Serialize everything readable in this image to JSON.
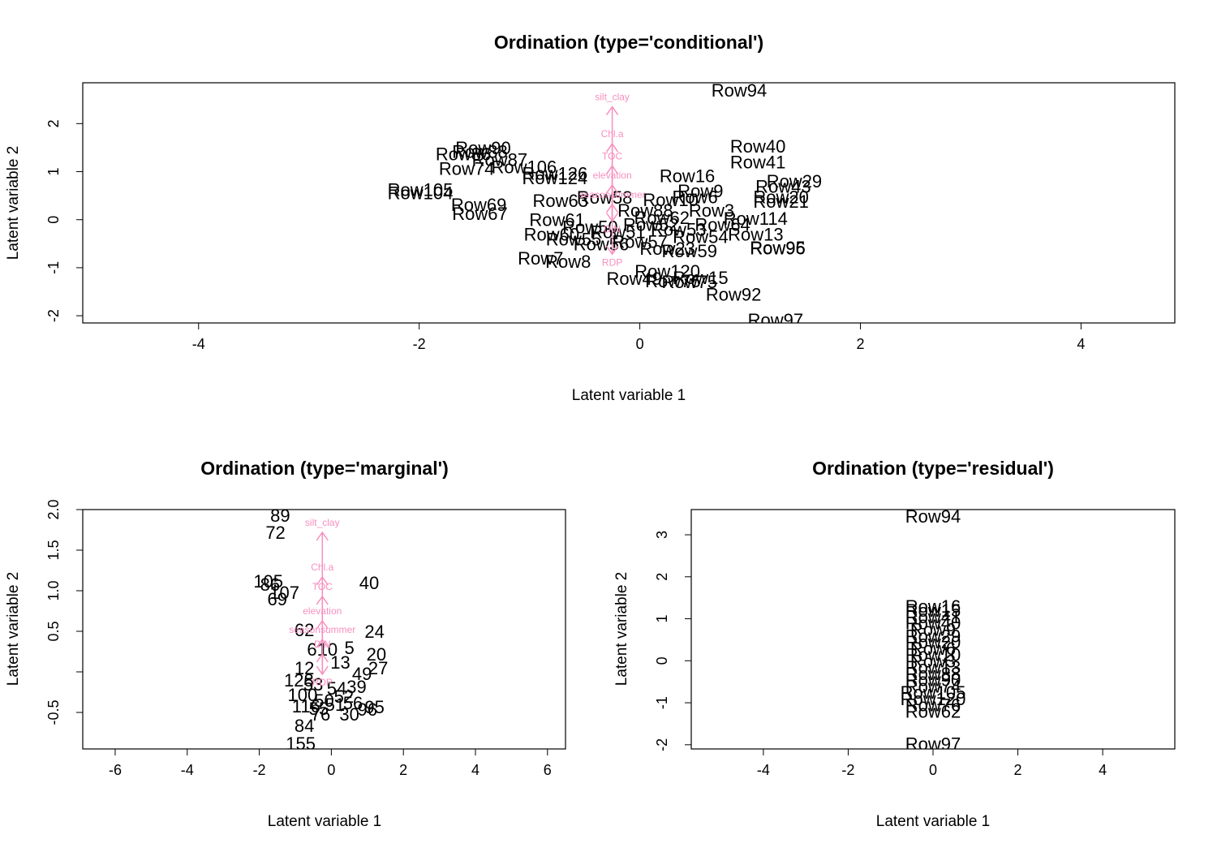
{
  "panels": [
    {
      "title": "Ordination (type='conditional')",
      "xlabel": "Latent variable 1",
      "ylabel": "Latent variable 2"
    },
    {
      "title": "Ordination (type='marginal')",
      "xlabel": "Latent variable 1",
      "ylabel": "Latent variable 2"
    },
    {
      "title": "Ordination (type='residual')",
      "xlabel": "Latent variable 1",
      "ylabel": "Latent variable 2"
    }
  ],
  "colors": {
    "arrow": "#f78fbf",
    "points": "#000000"
  },
  "chart_data": [
    {
      "type": "scatter",
      "title": "Ordination (type='conditional')",
      "xlabel": "Latent variable 1",
      "ylabel": "Latent variable 2",
      "xlim": [
        -5.05,
        4.85
      ],
      "ylim": [
        -2.15,
        2.85
      ],
      "xticks": [
        -4,
        -2,
        0,
        2,
        4
      ],
      "yticks": [
        -2,
        -1,
        0,
        1,
        2
      ],
      "points": [
        {
          "label": "Row94",
          "x": 0.9,
          "y": 2.7
        },
        {
          "label": "Row40",
          "x": 1.07,
          "y": 1.53
        },
        {
          "label": "Row41",
          "x": 1.07,
          "y": 1.2
        },
        {
          "label": "Row90",
          "x": -1.42,
          "y": 1.5
        },
        {
          "label": "Row88",
          "x": -1.45,
          "y": 1.42
        },
        {
          "label": "Row86",
          "x": -1.6,
          "y": 1.37
        },
        {
          "label": "Row87",
          "x": -1.27,
          "y": 1.25
        },
        {
          "label": "Row106",
          "x": -1.05,
          "y": 1.1
        },
        {
          "label": "Row74",
          "x": -1.57,
          "y": 1.07
        },
        {
          "label": "Row126",
          "x": -0.77,
          "y": 0.97
        },
        {
          "label": "Row124",
          "x": -0.77,
          "y": 0.87
        },
        {
          "label": "Row16",
          "x": 0.43,
          "y": 0.92
        },
        {
          "label": "Row29",
          "x": 1.4,
          "y": 0.81
        },
        {
          "label": "Row43",
          "x": 1.3,
          "y": 0.7
        },
        {
          "label": "Row20",
          "x": 1.28,
          "y": 0.48
        },
        {
          "label": "Row21",
          "x": 1.28,
          "y": 0.38
        },
        {
          "label": "Row105",
          "x": -1.99,
          "y": 0.63
        },
        {
          "label": "Row104",
          "x": -1.99,
          "y": 0.56
        },
        {
          "label": "Row69",
          "x": -1.46,
          "y": 0.32
        },
        {
          "label": "Row67",
          "x": -1.45,
          "y": 0.13
        },
        {
          "label": "Row58",
          "x": -0.32,
          "y": 0.47
        },
        {
          "label": "Row63",
          "x": -0.72,
          "y": 0.4
        },
        {
          "label": "Row9",
          "x": 0.55,
          "y": 0.6
        },
        {
          "label": "Row10",
          "x": 0.28,
          "y": 0.42
        },
        {
          "label": "Row6",
          "x": 0.5,
          "y": 0.48
        },
        {
          "label": "Row88b",
          "x": 0.05,
          "y": 0.2
        },
        {
          "label": "Row3",
          "x": 0.65,
          "y": 0.2
        },
        {
          "label": "Row114",
          "x": 1.05,
          "y": 0.03
        },
        {
          "label": "Row13",
          "x": 1.05,
          "y": -0.3
        },
        {
          "label": "Row95",
          "x": 1.25,
          "y": -0.58
        },
        {
          "label": "Row96",
          "x": 1.25,
          "y": -0.59
        },
        {
          "label": "Row23",
          "x": 0.25,
          "y": -0.6
        },
        {
          "label": "Row7",
          "x": -0.9,
          "y": -0.8
        },
        {
          "label": "Row8",
          "x": -0.65,
          "y": -0.87
        },
        {
          "label": "Row120",
          "x": 0.25,
          "y": -1.07
        },
        {
          "label": "Row15",
          "x": 0.55,
          "y": -1.2
        },
        {
          "label": "Row76",
          "x": 0.3,
          "y": -1.27
        },
        {
          "label": "Row75",
          "x": 0.45,
          "y": -1.29
        },
        {
          "label": "Row49",
          "x": -0.05,
          "y": -1.22
        },
        {
          "label": "Row92",
          "x": 0.85,
          "y": -1.55
        },
        {
          "label": "Row97",
          "x": 1.23,
          "y": -2.08
        },
        {
          "label": "Row50",
          "x": -0.45,
          "y": -0.15
        },
        {
          "label": "Row51",
          "x": -0.2,
          "y": -0.25
        },
        {
          "label": "Row52",
          "x": 0.1,
          "y": -0.1
        },
        {
          "label": "Row53",
          "x": 0.35,
          "y": -0.2
        },
        {
          "label": "Row54",
          "x": 0.55,
          "y": -0.35
        },
        {
          "label": "Row55",
          "x": -0.6,
          "y": -0.4
        },
        {
          "label": "Row56",
          "x": -0.35,
          "y": -0.5
        },
        {
          "label": "Row57",
          "x": 0.0,
          "y": -0.45
        },
        {
          "label": "Row59",
          "x": 0.45,
          "y": -0.65
        },
        {
          "label": "Row60",
          "x": -0.8,
          "y": -0.3
        },
        {
          "label": "Row61",
          "x": -0.75,
          "y": 0.0
        },
        {
          "label": "Row62",
          "x": 0.2,
          "y": 0.05
        },
        {
          "label": "Row64",
          "x": 0.75,
          "y": -0.1
        }
      ],
      "vectors": [
        {
          "name": "silt_clay",
          "x": -0.25,
          "y": 2.35
        },
        {
          "name": "Chl.a",
          "x": -0.25,
          "y": 1.58
        },
        {
          "name": "TOC",
          "x": -0.25,
          "y": 1.12
        },
        {
          "name": "elevation",
          "x": -0.25,
          "y": 0.72
        },
        {
          "name": "seasonsummer",
          "x": -0.25,
          "y": 0.32
        },
        {
          "name": "DIN",
          "x": -0.25,
          "y": -0.03
        },
        {
          "name": "RDP",
          "x": -0.25,
          "y": -0.72
        }
      ]
    },
    {
      "type": "scatter",
      "title": "Ordination (type='marginal')",
      "xlabel": "Latent variable 1",
      "ylabel": "Latent variable 2",
      "xlim": [
        -6.9,
        6.5
      ],
      "ylim": [
        -0.95,
        2.0
      ],
      "xticks": [
        -6,
        -4,
        -2,
        0,
        2,
        4,
        6
      ],
      "yticks": [
        -0.5,
        0,
        0.5,
        1.0,
        1.5,
        2.0
      ],
      "ytick_labels": [
        "-0.5",
        "",
        "0.5",
        "1.0",
        "1.5",
        "2.0"
      ],
      "points": [
        {
          "label": "89",
          "x": -1.42,
          "y": 1.93
        },
        {
          "label": "72",
          "x": -1.55,
          "y": 1.72
        },
        {
          "label": "105",
          "x": -1.75,
          "y": 1.12
        },
        {
          "label": "86",
          "x": -1.7,
          "y": 1.08
        },
        {
          "label": "107",
          "x": -1.3,
          "y": 0.98
        },
        {
          "label": "69",
          "x": -1.5,
          "y": 0.9
        },
        {
          "label": "40",
          "x": 1.05,
          "y": 1.1
        },
        {
          "label": "62",
          "x": -0.75,
          "y": 0.52
        },
        {
          "label": "24",
          "x": 1.2,
          "y": 0.5
        },
        {
          "label": "61",
          "x": -0.4,
          "y": 0.28
        },
        {
          "label": "10",
          "x": -0.1,
          "y": 0.28
        },
        {
          "label": "5",
          "x": 0.5,
          "y": 0.3
        },
        {
          "label": "20",
          "x": 1.25,
          "y": 0.22
        },
        {
          "label": "13",
          "x": 0.25,
          "y": 0.12
        },
        {
          "label": "27",
          "x": 1.3,
          "y": 0.05
        },
        {
          "label": "12",
          "x": -0.75,
          "y": 0.05
        },
        {
          "label": "128",
          "x": -0.9,
          "y": -0.1
        },
        {
          "label": "49",
          "x": 0.85,
          "y": -0.02
        },
        {
          "label": "39",
          "x": 0.7,
          "y": -0.18
        },
        {
          "label": "100",
          "x": -0.8,
          "y": -0.28
        },
        {
          "label": "116",
          "x": -0.7,
          "y": -0.42
        },
        {
          "label": "95",
          "x": 1.2,
          "y": -0.43
        },
        {
          "label": "96",
          "x": 1.0,
          "y": -0.46
        },
        {
          "label": "30",
          "x": 0.5,
          "y": -0.52
        },
        {
          "label": "76",
          "x": -0.3,
          "y": -0.52
        },
        {
          "label": "84",
          "x": -0.75,
          "y": -0.66
        },
        {
          "label": "155",
          "x": -0.85,
          "y": -0.88
        },
        {
          "label": "50",
          "x": -0.2,
          "y": -0.35
        },
        {
          "label": "51",
          "x": 0.1,
          "y": -0.4
        },
        {
          "label": "52",
          "x": 0.35,
          "y": -0.3
        },
        {
          "label": "53",
          "x": -0.5,
          "y": -0.15
        },
        {
          "label": "54",
          "x": 0.15,
          "y": -0.2
        },
        {
          "label": "55",
          "x": -0.35,
          "y": -0.45
        },
        {
          "label": "56",
          "x": 0.6,
          "y": -0.38
        }
      ],
      "vectors": [
        {
          "name": "silt_clay",
          "x": -0.25,
          "y": 1.72
        },
        {
          "name": "Chl.a",
          "x": -0.25,
          "y": 1.17
        },
        {
          "name": "TOC",
          "x": -0.25,
          "y": 0.93
        },
        {
          "name": "elevation",
          "x": -0.25,
          "y": 0.63
        },
        {
          "name": "seasonsummer",
          "x": -0.25,
          "y": 0.4
        },
        {
          "name": "DIN",
          "x": -0.25,
          "y": 0.22
        },
        {
          "name": "RDP",
          "x": -0.25,
          "y": -0.03
        }
      ]
    },
    {
      "type": "scatter",
      "title": "Ordination (type='residual')",
      "xlabel": "Latent variable 1",
      "ylabel": "Latent variable 2",
      "xlim": [
        -5.7,
        5.7
      ],
      "ylim": [
        -2.1,
        3.6
      ],
      "xticks": [
        -4,
        -2,
        0,
        2,
        4
      ],
      "yticks": [
        -2,
        -1,
        0,
        1,
        2,
        3
      ],
      "points": [
        {
          "label": "Row94",
          "x": 0.0,
          "y": 3.45
        },
        {
          "label": "Row16",
          "x": 0.0,
          "y": 1.3
        },
        {
          "label": "Row15",
          "x": 0.0,
          "y": 1.2
        },
        {
          "label": "Row41",
          "x": 0.0,
          "y": 1.05
        },
        {
          "label": "Row40",
          "x": 0.0,
          "y": 0.9
        },
        {
          "label": "Row9",
          "x": 0.0,
          "y": 0.75
        },
        {
          "label": "Row29",
          "x": 0.0,
          "y": 0.6
        },
        {
          "label": "Row20",
          "x": 0.0,
          "y": 0.45
        },
        {
          "label": "Row6",
          "x": 0.0,
          "y": 0.3
        },
        {
          "label": "Row10",
          "x": 0.0,
          "y": 0.15
        },
        {
          "label": "Row3",
          "x": 0.0,
          "y": 0.0
        },
        {
          "label": "Row13",
          "x": 0.0,
          "y": -0.15
        },
        {
          "label": "Row88",
          "x": 0.0,
          "y": -0.3
        },
        {
          "label": "Row90",
          "x": 0.0,
          "y": -0.45
        },
        {
          "label": "Row74",
          "x": 0.0,
          "y": -0.6
        },
        {
          "label": "Row105",
          "x": 0.0,
          "y": -0.75
        },
        {
          "label": "Row120",
          "x": 0.0,
          "y": -0.9
        },
        {
          "label": "Row76",
          "x": 0.0,
          "y": -1.05
        },
        {
          "label": "Row62",
          "x": 0.0,
          "y": -1.2
        },
        {
          "label": "Row97",
          "x": 0.0,
          "y": -1.97
        }
      ]
    }
  ]
}
